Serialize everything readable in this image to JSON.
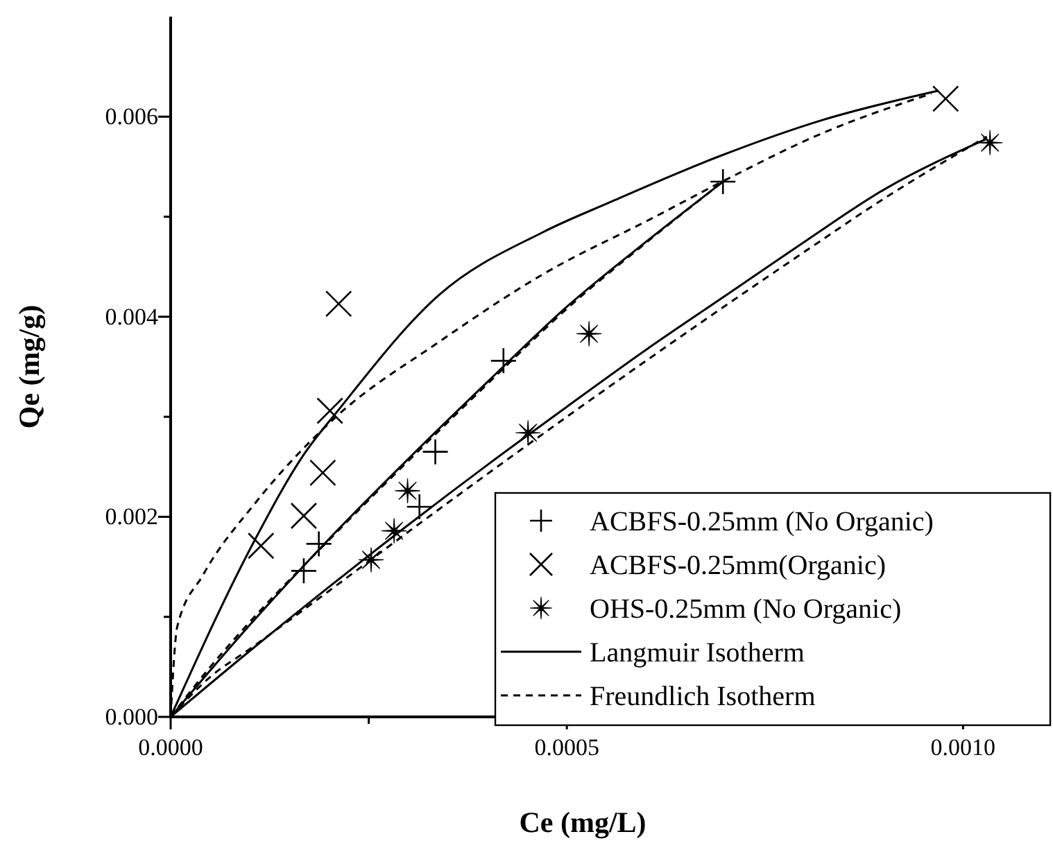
{
  "chart_data": {
    "type": "scatter",
    "xlabel": "Ce (mg/L)",
    "ylabel": "Qe (mg/g)",
    "xlim": [
      0,
      0.00111
    ],
    "ylim": [
      0,
      0.007
    ],
    "xticks": [
      {
        "value": 0,
        "label": "0.0000"
      },
      {
        "value": 0.00025,
        "label": null
      },
      {
        "value": 0.0005,
        "label": "0.0005"
      },
      {
        "value": 0.00075,
        "label": null
      },
      {
        "value": 0.001,
        "label": "0.0010"
      }
    ],
    "yticks": [
      {
        "value": 0,
        "label": "0.000"
      },
      {
        "value": 0.001,
        "label": null
      },
      {
        "value": 0.002,
        "label": "0.002"
      },
      {
        "value": 0.003,
        "label": null
      },
      {
        "value": 0.004,
        "label": "0.004"
      },
      {
        "value": 0.005,
        "label": null
      },
      {
        "value": 0.006,
        "label": "0.006"
      }
    ],
    "grid": false,
    "legend": "bottom right",
    "series": [
      {
        "name": "ACBFS-0.25mm (No Organic)",
        "marker": "cross",
        "color": "#000000",
        "x": [
          0.000168,
          0.000187,
          0.000314,
          0.000334,
          0.00042,
          0.000697
        ],
        "values": [
          0.00146,
          0.00173,
          0.0021,
          0.00265,
          0.00356,
          0.00535
        ]
      },
      {
        "name": "ACBFS-0.25mm(Organic)",
        "marker": "x",
        "color": "#000000",
        "x": [
          0.000114,
          0.000168,
          0.000192,
          0.000201,
          0.000212,
          0.000978
        ],
        "values": [
          0.00171,
          0.00201,
          0.00244,
          0.00306,
          0.00413,
          0.00618
        ]
      },
      {
        "name": "OHS-0.25mm (No Organic)",
        "marker": "star",
        "color": "#000000",
        "x": [
          0.000253,
          0.000282,
          0.000299,
          0.000451,
          0.000528,
          0.001034
        ],
        "values": [
          0.00157,
          0.00186,
          0.00226,
          0.00284,
          0.00383,
          0.00574
        ]
      },
      {
        "name": "Langmuir Isotherm",
        "type": "line",
        "line_style": "solid",
        "marker": "none",
        "color": "#000000",
        "x": [
          0,
          0.000107,
          0.000167,
          0.000213,
          0.000339,
          0.000471,
          0.000556,
          0.000691,
          0.000824,
          0.000969
        ],
        "values": [
          0,
          0.00178,
          0.00261,
          0.00308,
          0.00422,
          0.00485,
          0.00515,
          0.0056,
          0.00597,
          0.00626
        ]
      },
      {
        "name": "Freundlich Isotherm",
        "type": "line",
        "line_style": "dashed",
        "marker": "none",
        "color": "#000000",
        "x": [
          0,
          8.3e-06,
          4.1e-05,
          0.000107,
          0.000206,
          0.000339,
          0.000471,
          0.000609,
          0.000691,
          0.000824,
          0.00096
        ],
        "values": [
          0,
          0.0009,
          0.00142,
          0.00214,
          0.00298,
          0.00375,
          0.00443,
          0.00499,
          0.00533,
          0.00584,
          0.00623
        ]
      },
      {
        "type": "line",
        "line_style": "solid",
        "marker": "none",
        "color": "#000000",
        "x": [
          0,
          0.0001,
          0.0002,
          0.0003,
          0.0004,
          0.0005,
          0.0006,
          0.000697
        ],
        "values": [
          0,
          0.00092,
          0.00178,
          0.00258,
          0.00335,
          0.0041,
          0.00475,
          0.00535
        ]
      },
      {
        "type": "line",
        "line_style": "dashed",
        "marker": "none",
        "color": "#000000",
        "x": [
          0,
          5e-05,
          0.0001,
          0.0002,
          0.0003,
          0.0004,
          0.0005,
          0.0006,
          0.000697
        ],
        "values": [
          0,
          0.0005,
          0.00095,
          0.00177,
          0.00256,
          0.00333,
          0.00408,
          0.00474,
          0.00535
        ]
      },
      {
        "type": "line",
        "line_style": "solid",
        "marker": "none",
        "color": "#000000",
        "x": [
          0,
          0.0001,
          0.0002,
          0.0003,
          0.0004,
          0.0005,
          0.0006,
          0.0007,
          0.0008,
          0.0009,
          0.00103
        ],
        "values": [
          0,
          0.00066,
          0.0013,
          0.00192,
          0.00252,
          0.0031,
          0.00367,
          0.00421,
          0.00475,
          0.00527,
          0.00578
        ]
      },
      {
        "type": "line",
        "line_style": "dashed",
        "marker": "none",
        "color": "#000000",
        "x": [
          0,
          5e-05,
          0.0001,
          0.0002,
          0.0003,
          0.0004,
          0.0005,
          0.0006,
          0.0007,
          0.0008,
          0.0009,
          0.00103
        ],
        "values": [
          0,
          0.0004,
          0.00068,
          0.00126,
          0.00185,
          0.00243,
          0.003,
          0.00356,
          0.00411,
          0.00465,
          0.00518,
          0.0058
        ]
      }
    ]
  }
}
